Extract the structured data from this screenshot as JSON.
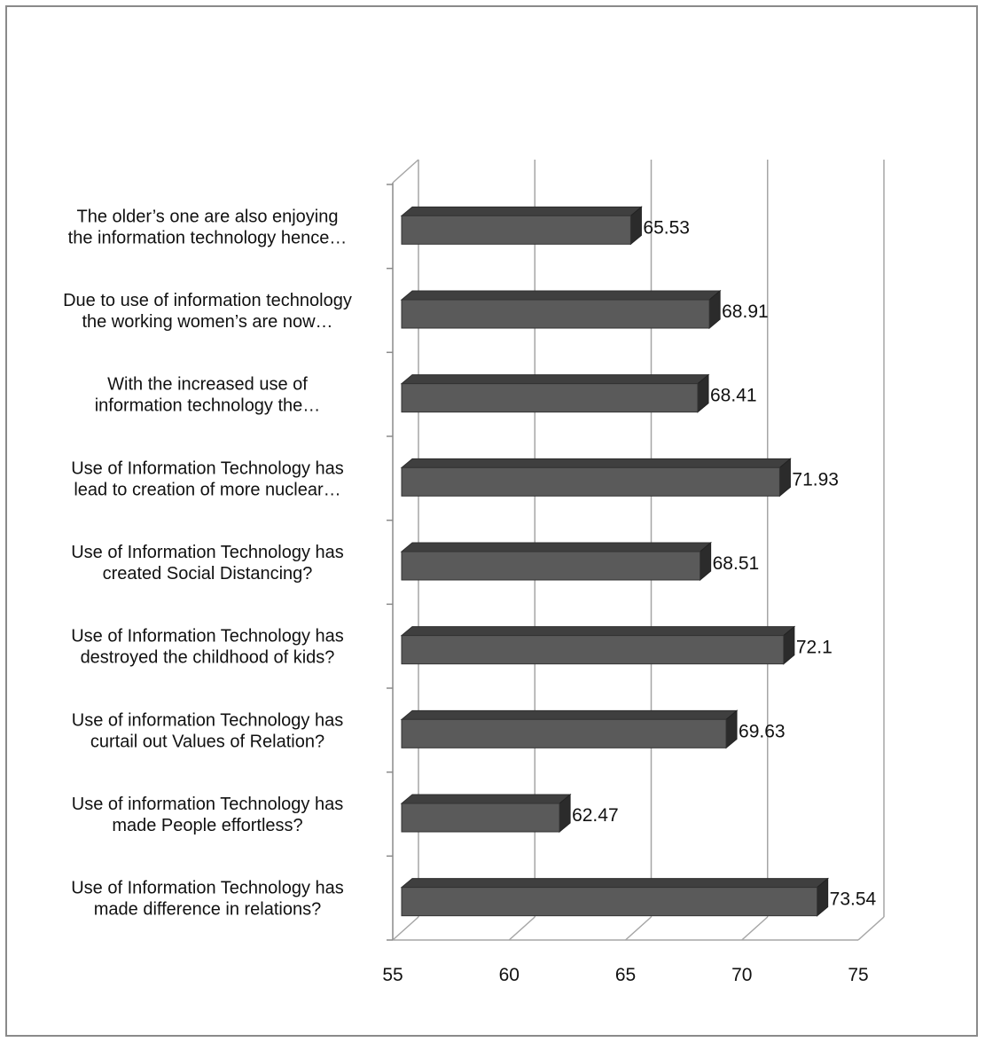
{
  "chart_data": {
    "type": "bar",
    "orientation": "horizontal",
    "style": "3d",
    "title": "",
    "xlabel": "",
    "ylabel": "",
    "xlim": [
      55,
      75
    ],
    "ticks": [
      "55",
      "60",
      "65",
      "70",
      "75"
    ],
    "tick_values": [
      55,
      60,
      65,
      70,
      75
    ],
    "grid": true,
    "bar_color": "#5a5a5a",
    "categories": [
      [
        "The older’s one are also enjoying",
        "the information technology hence…"
      ],
      [
        "Due to use of information technology",
        "the working women’s are now…"
      ],
      [
        "With the increased use of",
        "information technology the…"
      ],
      [
        "Use of Information Technology has",
        "lead to creation of more nuclear…"
      ],
      [
        "Use of Information Technology has",
        "created Social Distancing?"
      ],
      [
        "Use of Information Technology has",
        "destroyed the childhood of kids?"
      ],
      [
        "Use of information Technology has",
        "curtail out Values of Relation?"
      ],
      [
        "Use of information Technology has",
        "made People effortless?"
      ],
      [
        "Use of Information Technology has",
        "made difference in relations?"
      ]
    ],
    "values": [
      65.53,
      68.91,
      68.41,
      71.93,
      68.51,
      72.1,
      69.63,
      62.47,
      73.54
    ],
    "value_labels": [
      "65.53",
      "68.91",
      "68.41",
      "71.93",
      "68.51",
      "72.1",
      "69.63",
      "62.47",
      "73.54"
    ]
  }
}
